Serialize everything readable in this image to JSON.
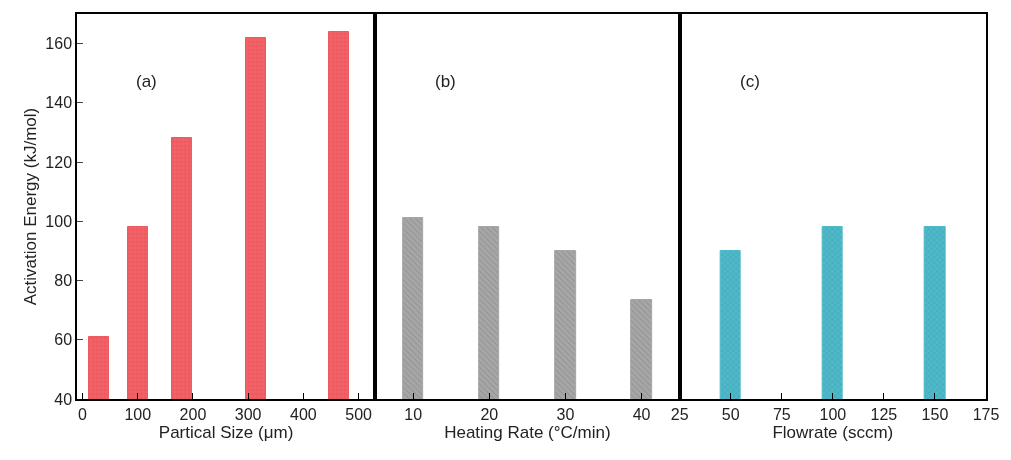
{
  "chart_data": [
    {
      "type": "bar",
      "x": [
        30,
        100,
        180,
        315,
        465
      ],
      "values": [
        61,
        98,
        128,
        162,
        164
      ],
      "color": "#ef5a5e",
      "xlim": [
        -10,
        530
      ],
      "xticks": [
        0,
        100,
        200,
        300,
        400,
        500
      ],
      "ylim": [
        40,
        170
      ],
      "yticks": [
        40,
        60,
        80,
        100,
        120,
        140,
        160
      ],
      "xlabel": "Partical Size (μm)",
      "ylabel": "Activation Energy (kJ/mol)",
      "annotations": [
        "(a)"
      ]
    },
    {
      "type": "bar",
      "x": [
        10,
        20,
        30,
        40
      ],
      "values": [
        101,
        98,
        90,
        73.5
      ],
      "color": "#a6a6a6",
      "xlim": [
        5,
        45
      ],
      "xticks": [
        10,
        20,
        30,
        40
      ],
      "ylim": [
        40,
        170
      ],
      "xlabel": "Heating Rate (°C/min)",
      "annotations": [
        "(b)"
      ],
      "tick_labels": "x"
    },
    {
      "type": "bar",
      "x": [
        50,
        100,
        150
      ],
      "values": [
        90,
        98,
        98
      ],
      "color": "#4fb9c9",
      "xlim": [
        25,
        175
      ],
      "xticks": [
        25,
        50,
        75,
        100,
        125,
        150,
        175
      ],
      "ylim": [
        40,
        170
      ],
      "xlabel": "Flowrate (sccm)",
      "annotations": [
        "(c)"
      ],
      "tick_labels": "x"
    }
  ]
}
